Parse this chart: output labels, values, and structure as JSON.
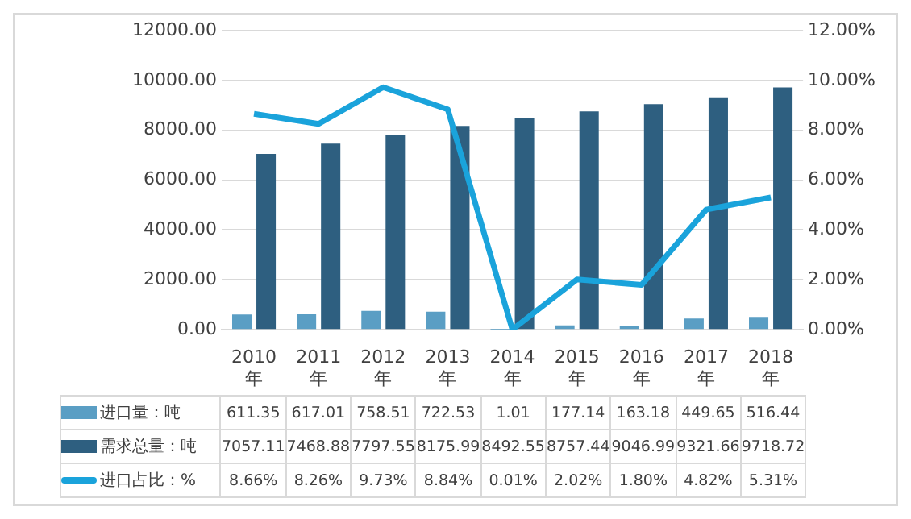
{
  "chart_data": {
    "type": "bar",
    "categories": [
      "2010年",
      "2011年",
      "2012年",
      "2013年",
      "2014年",
      "2015年",
      "2016年",
      "2017年",
      "2018年"
    ],
    "series": [
      {
        "name": "进口量：吨",
        "color": "#5a9ec4",
        "values": [
          611.35,
          617.01,
          758.51,
          722.53,
          1.01,
          177.14,
          163.18,
          449.65,
          516.44
        ],
        "value_labels": [
          "611.35",
          "617.01",
          "758.51",
          "722.53",
          "1.01",
          "177.14",
          "163.18",
          "449.65",
          "516.44"
        ]
      },
      {
        "name": "需求总量：吨",
        "color": "#2e5f80",
        "values": [
          7057.11,
          7468.88,
          7797.55,
          8175.99,
          8492.55,
          8757.44,
          9046.99,
          9321.66,
          9718.72
        ],
        "value_labels": [
          "7057.11",
          "7468.88",
          "7797.55",
          "8175.99",
          "8492.55",
          "8757.44",
          "9046.99",
          "9321.66",
          "9718.72"
        ]
      },
      {
        "name": "进口占比：%",
        "type": "line",
        "axis": "y2",
        "color": "#1aa3db",
        "marker": "none",
        "values": [
          8.66,
          8.26,
          9.73,
          8.84,
          0.01,
          2.02,
          1.8,
          4.82,
          5.31
        ],
        "value_labels": [
          "8.66%",
          "8.26%",
          "9.73%",
          "8.84%",
          "0.01%",
          "2.02%",
          "1.80%",
          "4.82%",
          "5.31%"
        ]
      }
    ],
    "ylim": [
      0,
      12000
    ],
    "yticks": [
      {
        "value": 0,
        "label": "0.00"
      },
      {
        "value": 2000,
        "label": "2000.00"
      },
      {
        "value": 4000,
        "label": "4000.00"
      },
      {
        "value": 6000,
        "label": "6000.00"
      },
      {
        "value": 8000,
        "label": "8000.00"
      },
      {
        "value": 10000,
        "label": "10000.00"
      },
      {
        "value": 12000,
        "label": "12000.00"
      }
    ],
    "y2lim": [
      0,
      12
    ],
    "y2ticks": [
      {
        "value": 0,
        "label": "0.00%"
      },
      {
        "value": 2,
        "label": "2.00%"
      },
      {
        "value": 4,
        "label": "4.00%"
      },
      {
        "value": 6,
        "label": "6.00%"
      },
      {
        "value": 8,
        "label": "8.00%"
      },
      {
        "value": 10,
        "label": "10.00%"
      },
      {
        "value": 12,
        "label": "12.00%"
      }
    ],
    "grid": "y",
    "legend": "bottom"
  }
}
